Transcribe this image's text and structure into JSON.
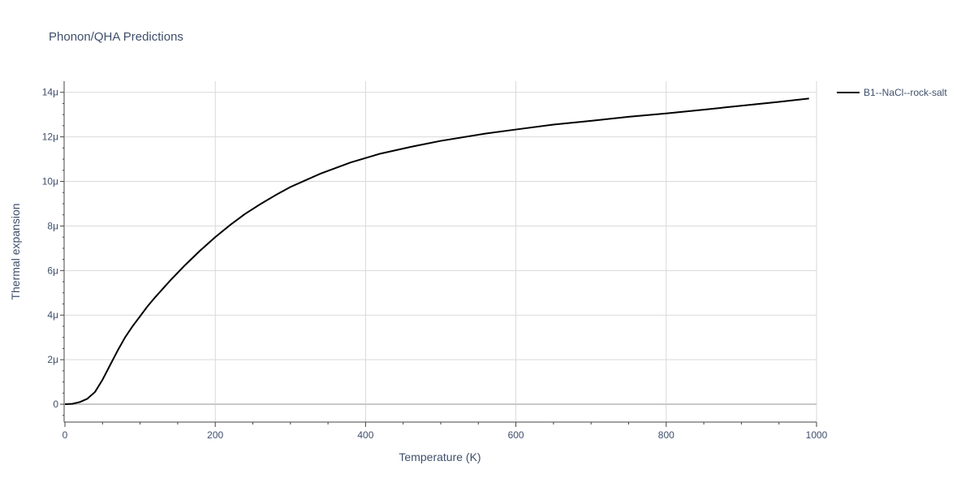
{
  "chart_data": {
    "type": "line",
    "title": "Phonon/QHA Predictions",
    "xlabel": "Temperature (K)",
    "ylabel": "Thermal expansion",
    "xlim": [
      0,
      1000
    ],
    "ylim": [
      -8e-07,
      1.45e-05
    ],
    "x_ticks": [
      0,
      200,
      400,
      600,
      800,
      1000
    ],
    "x_tick_labels": [
      "0",
      "200",
      "400",
      "600",
      "800",
      "1000"
    ],
    "y_ticks": [
      0,
      2e-06,
      4e-06,
      6e-06,
      8e-06,
      1e-05,
      1.2e-05,
      1.4e-05
    ],
    "y_tick_labels": [
      "0",
      "2μ",
      "4μ",
      "6μ",
      "8μ",
      "10μ",
      "12μ",
      "14μ"
    ],
    "grid": true,
    "legend_position": "top-right outside",
    "colors": {
      "line": "#000000",
      "grid": "#d9d9d9",
      "text": "#3f4f6b"
    },
    "series": [
      {
        "name": "B1--NaCl--rock-salt",
        "x": [
          0,
          10,
          20,
          30,
          40,
          50,
          60,
          70,
          80,
          90,
          100,
          110,
          120,
          140,
          160,
          180,
          200,
          220,
          240,
          260,
          280,
          300,
          340,
          380,
          420,
          460,
          500,
          560,
          600,
          650,
          700,
          750,
          800,
          850,
          900,
          950,
          990
        ],
        "y": [
          0,
          2e-08,
          1e-07,
          2.5e-07,
          5.5e-07,
          1.1e-06,
          1.75e-06,
          2.4e-06,
          3e-06,
          3.5e-06,
          3.95e-06,
          4.4e-06,
          4.8e-06,
          5.55e-06,
          6.25e-06,
          6.9e-06,
          7.5e-06,
          8.05e-06,
          8.55e-06,
          8.98e-06,
          9.38e-06,
          9.75e-06,
          1.035e-05,
          1.085e-05,
          1.125e-05,
          1.155e-05,
          1.182e-05,
          1.215e-05,
          1.233e-05,
          1.255e-05,
          1.272e-05,
          1.29e-05,
          1.305e-05,
          1.322e-05,
          1.34e-05,
          1.357e-05,
          1.372e-05
        ]
      }
    ]
  }
}
